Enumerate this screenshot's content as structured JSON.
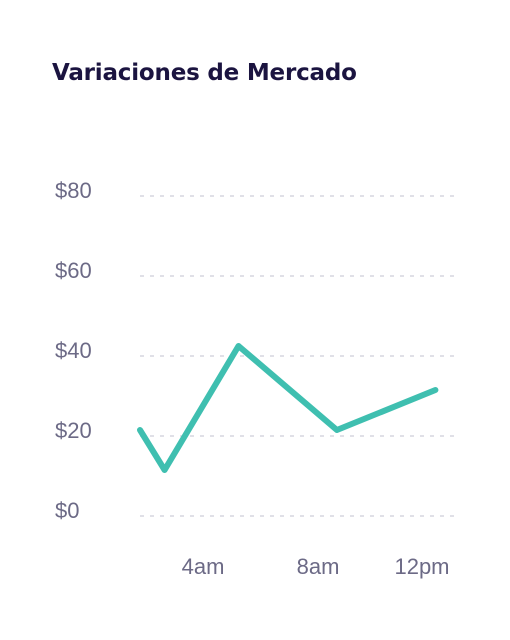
{
  "chart_data": {
    "type": "line",
    "title": "Variaciones de Mercado",
    "xlabel": "",
    "ylabel": "",
    "x": [
      "2am",
      "3am",
      "6am",
      "10am",
      "2pm"
    ],
    "x_positions": [
      2,
      3,
      6,
      10,
      14
    ],
    "x_ticks": [
      4,
      8,
      12
    ],
    "x_tick_labels": [
      "4am",
      "8am",
      "12pm"
    ],
    "series": [
      {
        "values": [
          20,
          10,
          41,
          20,
          30
        ]
      }
    ],
    "y_ticks": [
      0,
      20,
      40,
      60,
      80
    ],
    "y_tick_labels": [
      "$0",
      "$20",
      "$40",
      "$60",
      "$80"
    ],
    "ylim": [
      0,
      80
    ],
    "grid": true,
    "colors": {
      "line": "#3fbfb0",
      "grid": "#d5d5df",
      "title": "#1b1440",
      "tick_text": "#6c6a86"
    }
  }
}
